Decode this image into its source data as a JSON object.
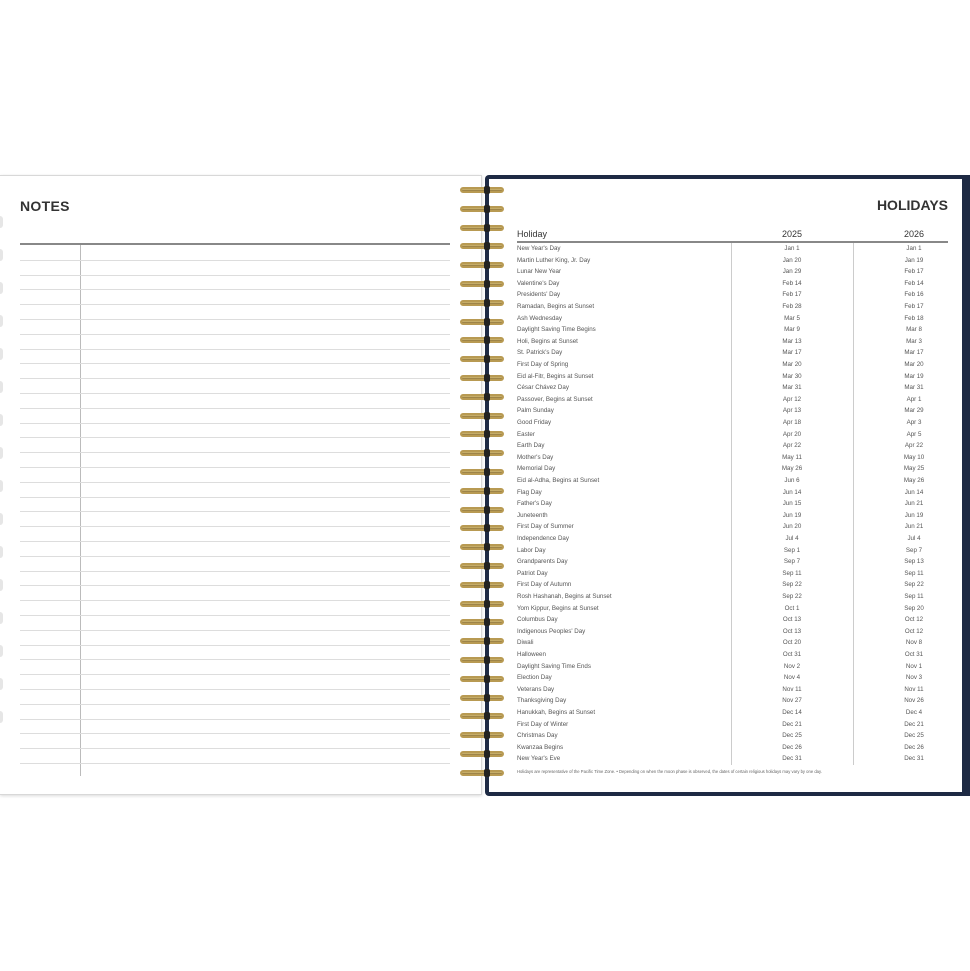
{
  "notes": {
    "title": "NOTES"
  },
  "holidays": {
    "title": "HOLIDAYS",
    "headers": [
      "Holiday",
      "2025",
      "2026"
    ],
    "rows": [
      [
        "New Year's Day",
        "Jan 1",
        "Jan 1"
      ],
      [
        "Martin Luther King, Jr. Day",
        "Jan 20",
        "Jan 19"
      ],
      [
        "Lunar New Year",
        "Jan 29",
        "Feb 17"
      ],
      [
        "Valentine's Day",
        "Feb 14",
        "Feb 14"
      ],
      [
        "Presidents' Day",
        "Feb 17",
        "Feb 16"
      ],
      [
        "Ramadan, Begins at Sunset",
        "Feb 28",
        "Feb 17"
      ],
      [
        "Ash Wednesday",
        "Mar 5",
        "Feb 18"
      ],
      [
        "Daylight Saving Time Begins",
        "Mar 9",
        "Mar 8"
      ],
      [
        "Holi, Begins at Sunset",
        "Mar 13",
        "Mar 3"
      ],
      [
        "St. Patrick's Day",
        "Mar 17",
        "Mar 17"
      ],
      [
        "First Day of Spring",
        "Mar 20",
        "Mar 20"
      ],
      [
        "Eid al-Fitr, Begins at Sunset",
        "Mar 30",
        "Mar 19"
      ],
      [
        "César Chávez Day",
        "Mar 31",
        "Mar 31"
      ],
      [
        "Passover, Begins at Sunset",
        "Apr 12",
        "Apr 1"
      ],
      [
        "Palm Sunday",
        "Apr 13",
        "Mar 29"
      ],
      [
        "Good Friday",
        "Apr 18",
        "Apr 3"
      ],
      [
        "Easter",
        "Apr 20",
        "Apr 5"
      ],
      [
        "Earth Day",
        "Apr 22",
        "Apr 22"
      ],
      [
        "Mother's Day",
        "May 11",
        "May 10"
      ],
      [
        "Memorial Day",
        "May 26",
        "May 25"
      ],
      [
        "Eid al-Adha, Begins at Sunset",
        "Jun 6",
        "May 26"
      ],
      [
        "Flag Day",
        "Jun 14",
        "Jun 14"
      ],
      [
        "Father's Day",
        "Jun 15",
        "Jun 21"
      ],
      [
        "Juneteenth",
        "Jun 19",
        "Jun 19"
      ],
      [
        "First Day of Summer",
        "Jun 20",
        "Jun 21"
      ],
      [
        "Independence Day",
        "Jul 4",
        "Jul 4"
      ],
      [
        "Labor Day",
        "Sep 1",
        "Sep 7"
      ],
      [
        "Grandparents Day",
        "Sep 7",
        "Sep 13"
      ],
      [
        "Patriot Day",
        "Sep 11",
        "Sep 11"
      ],
      [
        "First Day of Autumn",
        "Sep 22",
        "Sep 22"
      ],
      [
        "Rosh Hashanah, Begins at Sunset",
        "Sep 22",
        "Sep 11"
      ],
      [
        "Yom Kippur, Begins at Sunset",
        "Oct 1",
        "Sep 20"
      ],
      [
        "Columbus Day",
        "Oct 13",
        "Oct 12"
      ],
      [
        "Indigenous Peoples' Day",
        "Oct 13",
        "Oct 12"
      ],
      [
        "Diwali",
        "Oct 20",
        "Nov 8"
      ],
      [
        "Halloween",
        "Oct 31",
        "Oct 31"
      ],
      [
        "Daylight Saving Time Ends",
        "Nov 2",
        "Nov 1"
      ],
      [
        "Election Day",
        "Nov 4",
        "Nov 3"
      ],
      [
        "Veterans Day",
        "Nov 11",
        "Nov 11"
      ],
      [
        "Thanksgiving Day",
        "Nov 27",
        "Nov 26"
      ],
      [
        "Hanukkah, Begins at Sunset",
        "Dec 14",
        "Dec 4"
      ],
      [
        "First Day of Winter",
        "Dec 21",
        "Dec 21"
      ],
      [
        "Christmas Day",
        "Dec 25",
        "Dec 25"
      ],
      [
        "Kwanzaa Begins",
        "Dec 26",
        "Dec 26"
      ],
      [
        "New Year's Eve",
        "Dec 31",
        "Dec 31"
      ]
    ],
    "footnote": "Holidays are representative of the Pacific Time Zone.  •  Depending on when the moon phase is observed, the dates of certain religious holidays may vary by one day."
  },
  "colors": {
    "cover": "#1e2a44",
    "spiral": "#b89a52"
  }
}
